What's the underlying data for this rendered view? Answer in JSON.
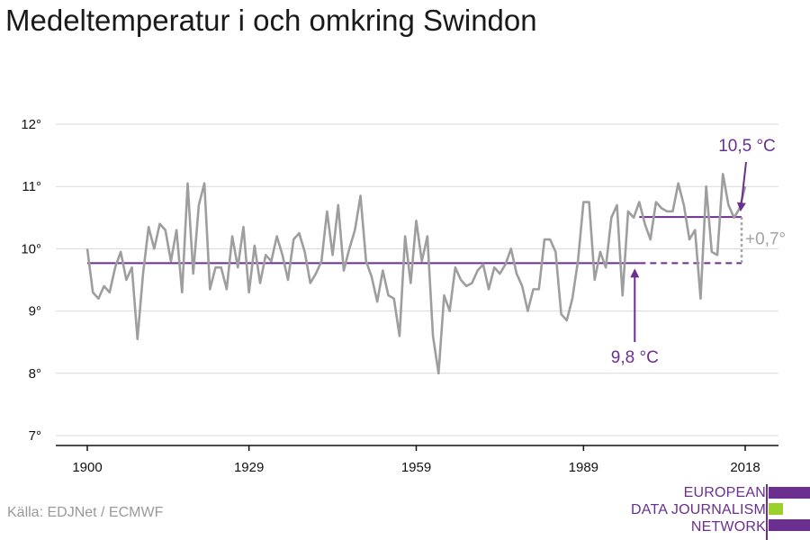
{
  "header": {
    "title": "Medeltemperatur i och omkring Swindon"
  },
  "footer": {
    "source": "Källa: EDJNet / ECMWF"
  },
  "logo": {
    "lines": [
      "EUROPEAN",
      "DATA JOURNALISM",
      "NETWORK"
    ],
    "colors": {
      "purple": "#6b2f8f",
      "green": "#9bd12a"
    }
  },
  "colors": {
    "series": "#9e9e9e",
    "reference": "#6b2f8f",
    "difference": "#a3a3a3",
    "grid": "#d9d9d9",
    "axis": "#111111"
  },
  "chart_data": {
    "type": "line",
    "title": "Medeltemperatur i och omkring Swindon",
    "xlabel": "",
    "ylabel": "",
    "xlim": [
      1900,
      2018
    ],
    "ylim": [
      7,
      12
    ],
    "grid": true,
    "x_ticks": [
      1900,
      1929,
      1959,
      1989,
      2018
    ],
    "x_tick_labels": [
      "1900",
      "1929",
      "1959",
      "1989",
      "2018"
    ],
    "y_ticks": [
      7,
      8,
      9,
      10,
      11,
      12
    ],
    "y_tick_labels": [
      "7°",
      "8°",
      "9°",
      "10°",
      "11°",
      "12°"
    ],
    "series": [
      {
        "x": [
          1900,
          1901,
          1902,
          1903,
          1904,
          1905,
          1906,
          1907,
          1908,
          1909,
          1910,
          1911,
          1912,
          1913,
          1914,
          1915,
          1916,
          1917,
          1918,
          1919,
          1920,
          1921,
          1922,
          1923,
          1924,
          1925,
          1926,
          1927,
          1928,
          1929,
          1930,
          1931,
          1932,
          1933,
          1934,
          1935,
          1936,
          1937,
          1938,
          1939,
          1940,
          1941,
          1942,
          1943,
          1944,
          1945,
          1946,
          1947,
          1948,
          1949,
          1950,
          1951,
          1952,
          1953,
          1954,
          1955,
          1956,
          1957,
          1958,
          1959,
          1960,
          1961,
          1962,
          1963,
          1964,
          1965,
          1966,
          1967,
          1968,
          1969,
          1970,
          1971,
          1972,
          1973,
          1974,
          1975,
          1976,
          1977,
          1978,
          1979,
          1980,
          1981,
          1982,
          1983,
          1984,
          1985,
          1986,
          1987,
          1988,
          1989,
          1990,
          1991,
          1992,
          1993,
          1994,
          1995,
          1996,
          1997,
          1998,
          1999,
          2000,
          2001,
          2002,
          2003,
          2004,
          2005,
          2006,
          2007,
          2008,
          2009,
          2010,
          2011,
          2012,
          2013,
          2014,
          2015,
          2016,
          2017,
          2018
        ],
        "values": [
          10.0,
          9.3,
          9.2,
          9.4,
          9.3,
          9.7,
          9.95,
          9.5,
          9.7,
          8.55,
          9.6,
          10.35,
          10.0,
          10.4,
          10.3,
          9.8,
          10.3,
          9.3,
          11.05,
          9.6,
          10.7,
          11.05,
          9.35,
          9.7,
          9.7,
          9.35,
          10.2,
          9.7,
          10.35,
          9.3,
          10.05,
          9.45,
          9.9,
          9.8,
          10.2,
          9.9,
          9.5,
          10.15,
          10.25,
          9.95,
          9.45,
          9.6,
          9.8,
          10.6,
          9.9,
          10.7,
          9.65,
          10.0,
          10.3,
          10.85,
          9.8,
          9.55,
          9.15,
          9.65,
          9.25,
          9.2,
          8.6,
          10.2,
          9.45,
          10.45,
          9.8,
          10.2,
          8.6,
          8.0,
          9.25,
          9.0,
          9.7,
          9.5,
          9.4,
          9.45,
          9.65,
          9.75,
          9.35,
          9.7,
          9.6,
          9.75,
          10.0,
          9.6,
          9.4,
          9.0,
          9.35,
          9.35,
          10.15,
          10.15,
          9.95,
          8.95,
          8.85,
          9.2,
          9.8,
          10.75,
          10.75,
          9.5,
          9.95,
          9.7,
          10.5,
          10.7,
          9.25,
          10.6,
          10.5,
          10.75,
          10.4,
          10.15,
          10.75,
          10.65,
          10.6,
          10.6,
          11.05,
          10.7,
          10.15,
          10.3,
          9.2,
          11.0,
          9.95,
          9.9,
          11.2,
          10.7,
          10.5,
          10.65,
          11.0
        ]
      }
    ],
    "reference_lines": [
      {
        "label": "9,8 °C",
        "value": 9.77,
        "x_start": 1900,
        "x_solid_end": 1999,
        "x_dashed_end": 2018
      },
      {
        "label": "10,5 °C",
        "value": 10.51,
        "x_start": 1999,
        "x_end": 2018
      }
    ],
    "difference_label": "+0,7°"
  }
}
